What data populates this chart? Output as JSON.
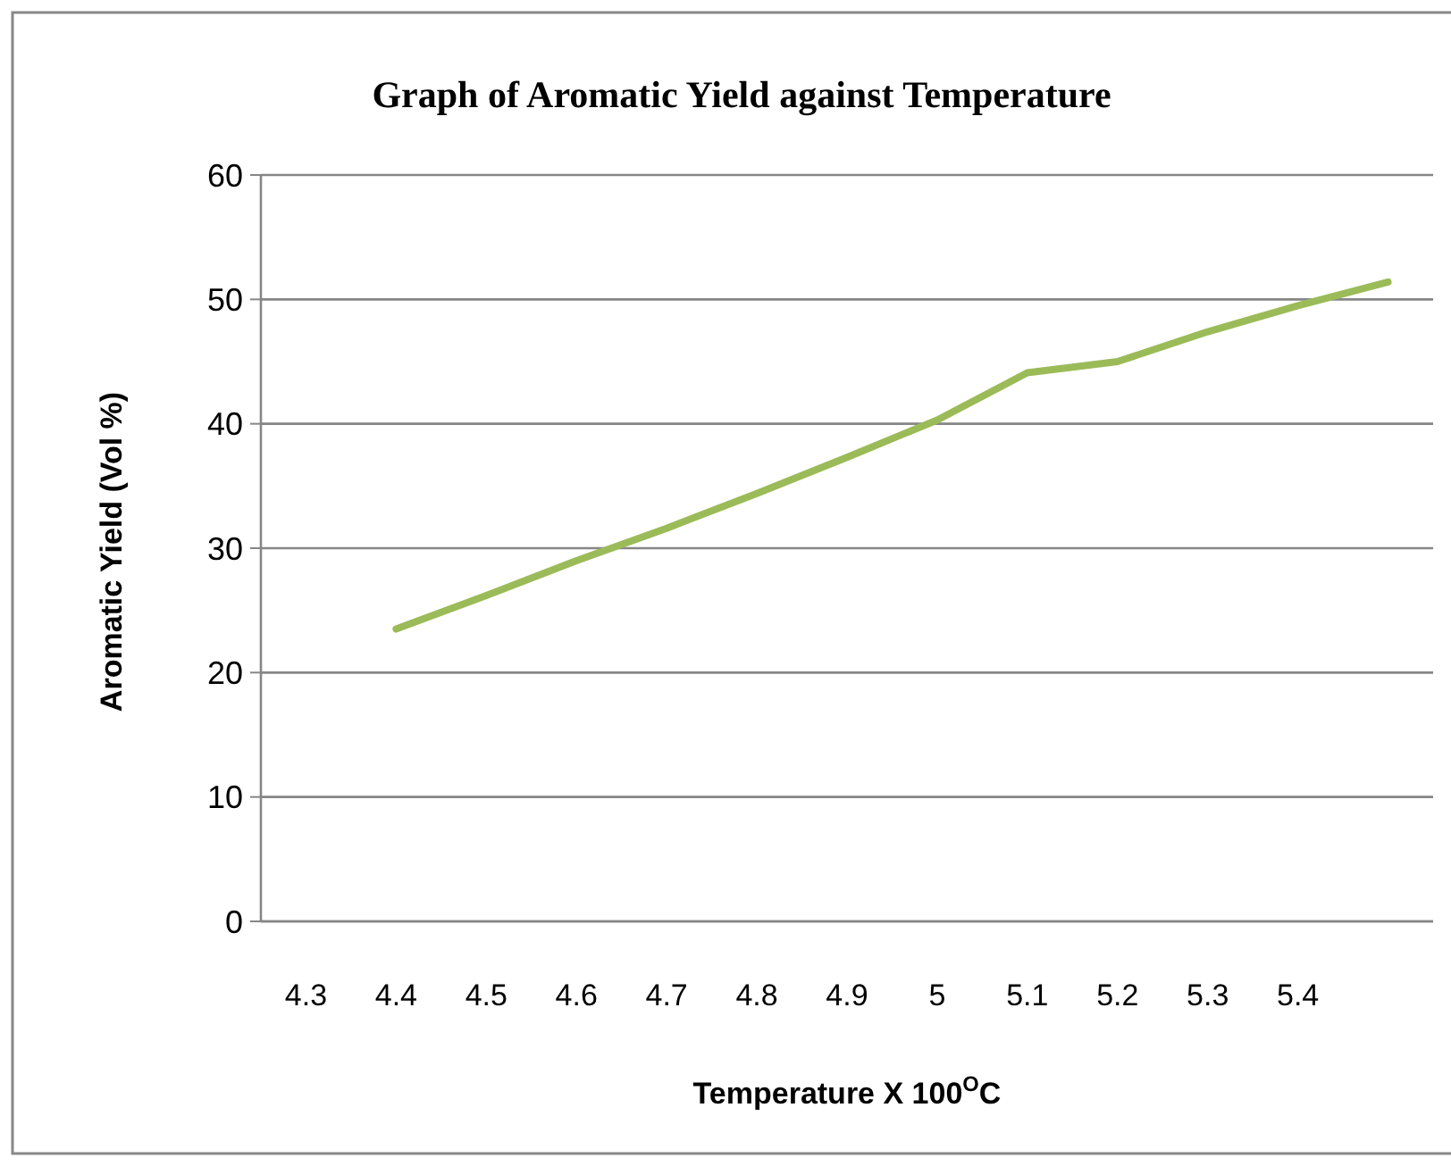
{
  "chart_data": {
    "type": "line",
    "title": "Graph of Aromatic Yield against Temperature",
    "xlabel": "Temperature X 100$^{O}$C",
    "ylabel": "Aromatic Yield (Vol %)",
    "categories": [
      "4.3",
      "4.4",
      "4.5",
      "4.6",
      "4.7",
      "4.8",
      "4.9",
      "5",
      "5.1",
      "5.2",
      "5.3",
      "5.4",
      null
    ],
    "series": [
      {
        "color": "#9bbb59",
        "values": [
          null,
          23.5,
          26.2,
          29.0,
          31.6,
          34.4,
          37.3,
          40.3,
          44.1,
          45.0,
          47.4,
          49.5,
          51.4
        ]
      }
    ],
    "ylim": [
      0,
      60
    ],
    "yticks": [
      0,
      10,
      20,
      30,
      40,
      50,
      60
    ],
    "grid": "y",
    "marker": "none",
    "line_style": "solid"
  }
}
